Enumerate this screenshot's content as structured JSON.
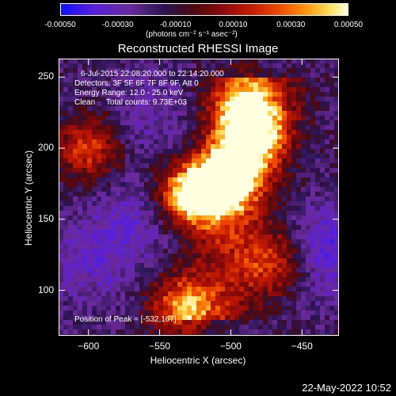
{
  "colorbar": {
    "ticks": [
      "-0.00050",
      "-0.00030",
      "-0.00010",
      "0.00010",
      "0.00030",
      "0.00050"
    ],
    "unit_label": "(photons cm⁻² s⁻¹ asec⁻²)",
    "colors": [
      "#1010ff",
      "#5a20d8",
      "#2a1450",
      "#8a0a0a",
      "#ee4a00",
      "#ffffe0"
    ]
  },
  "title": "Reconstructed RHESSI Image",
  "annotations": {
    "time": "6-Jul-2015 22:08:20.000 to 22:14:20.000",
    "detectors": "Detectors: 3F 5F 6F 7F 8F 9F, Att 0",
    "energy": "Energy Range: 12.0 - 25.0 keV",
    "algorithm": "Clean     Total counts: 9.73E+03",
    "peak": "Position of Peak = [-532,167]"
  },
  "axes": {
    "xlabel": "Heliocentric X (arcsec)",
    "ylabel": "Heliocentric Y (arcsec)",
    "xticks": [
      "-600",
      "-550",
      "-500",
      "-450"
    ],
    "yticks": [
      "250",
      "200",
      "150",
      "100"
    ],
    "xlim": [
      -621,
      -424
    ],
    "ylim": [
      68,
      263
    ]
  },
  "image_summary": {
    "peak_position": [
      -532,
      167
    ],
    "bright_regions": [
      {
        "center": [
          -532,
          167
        ],
        "intensity": 1.0
      },
      {
        "center": [
          -510,
          170
        ],
        "intensity": 0.85
      },
      {
        "center": [
          -495,
          190
        ],
        "intensity": 0.8
      },
      {
        "center": [
          -480,
          215
        ],
        "intensity": 0.75
      },
      {
        "center": [
          -600,
          200
        ],
        "intensity": 0.7
      },
      {
        "center": [
          -535,
          88
        ],
        "intensity": 0.75
      },
      {
        "center": [
          -470,
          120
        ],
        "intensity": 0.6
      },
      {
        "center": [
          -495,
          230
        ],
        "intensity": 0.65
      }
    ],
    "dark_regions": [
      {
        "center": [
          -565,
          150
        ],
        "intensity": -0.35
      },
      {
        "center": [
          -430,
          130
        ],
        "intensity": -0.5
      },
      {
        "center": [
          -600,
          120
        ],
        "intensity": -0.3
      },
      {
        "center": [
          -555,
          225
        ],
        "intensity": -0.25
      }
    ]
  },
  "datestamp": "22-May-2022 10:52"
}
